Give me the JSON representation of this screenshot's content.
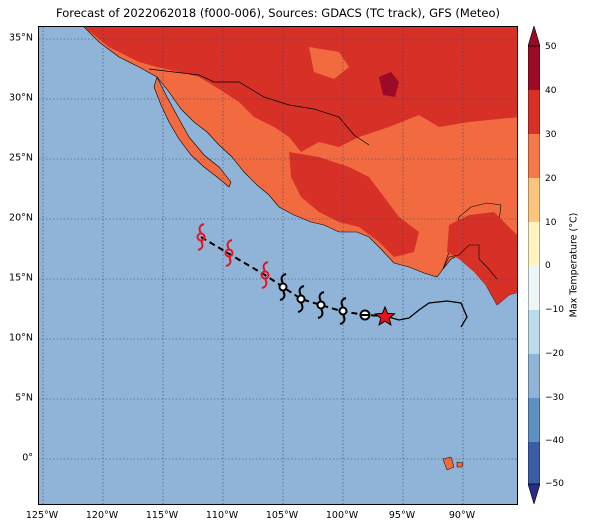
{
  "title": "Forecast of 2022062018 (f000-006), Sources: GDACS (TC track), GFS (Meteo)",
  "colorbar": {
    "label": "Max Temperature (°C)",
    "ticks": [
      "50",
      "40",
      "30",
      "20",
      "10",
      "0",
      "−10",
      "−20",
      "−30",
      "−40",
      "−50"
    ],
    "colors": [
      "#2b2b8c",
      "#3a5da8",
      "#5f90c4",
      "#90b4d8",
      "#bcdbea",
      "#eef6f5",
      "#fff3c0",
      "#fdc57c",
      "#f57a4a",
      "#d73127",
      "#9b0a26"
    ]
  },
  "axes": {
    "lat_labels": [
      "35°N",
      "30°N",
      "25°N",
      "20°N",
      "15°N",
      "10°N",
      "5°N",
      "0°"
    ],
    "lon_labels": [
      "125°W",
      "120°W",
      "115°W",
      "110°W",
      "105°W",
      "100°W",
      "95°W",
      "90°W"
    ]
  },
  "legend_colors": {
    "ocean": "#90b4d8",
    "land_hot": "#d73127",
    "land_warm": "#f26b40",
    "land_veryhot": "#9b0a26"
  },
  "storm_track": {
    "past_positions_icon": "hurricane-symbol-icon",
    "current_position_icon": "star-icon",
    "forecast_positions_icon": "hurricane-symbol-red-icon"
  }
}
